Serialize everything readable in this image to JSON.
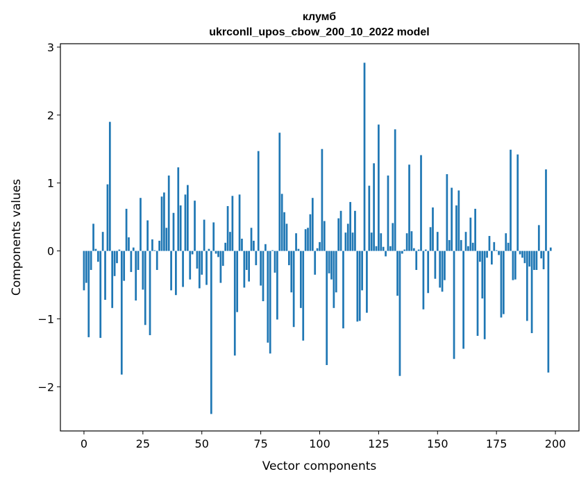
{
  "chart_data": {
    "type": "bar",
    "title": "клумб",
    "subtitle": "ukrconll_upos_cbow_200_10_2022 model",
    "xlabel": "Vector components",
    "ylabel": "Components values",
    "xlim": [
      -10,
      210
    ],
    "ylim": [
      -2.65,
      3.05
    ],
    "xticks": [
      0,
      25,
      50,
      75,
      100,
      125,
      150,
      175,
      200
    ],
    "yticks": [
      -2,
      -1,
      0,
      1,
      2,
      3
    ],
    "ytick_labels": [
      "−2",
      "−1",
      "0",
      "1",
      "2",
      "3"
    ],
    "bar_color": "#1f77b4",
    "grid": false,
    "values": [
      -0.58,
      -0.47,
      -1.27,
      -0.28,
      0.4,
      0.03,
      -0.16,
      -1.28,
      0.28,
      -0.72,
      0.98,
      1.9,
      -0.84,
      -0.37,
      -0.18,
      0.02,
      -1.82,
      -0.44,
      0.62,
      0.2,
      -0.31,
      0.05,
      -0.73,
      -0.28,
      0.78,
      -0.57,
      -1.09,
      0.45,
      -1.24,
      0.17,
      0.01,
      -0.28,
      0.15,
      0.8,
      0.86,
      0.34,
      1.11,
      -0.58,
      0.56,
      -0.65,
      1.23,
      0.67,
      -0.53,
      0.83,
      0.97,
      -0.42,
      -0.05,
      0.74,
      -0.26,
      -0.55,
      -0.35,
      0.46,
      -0.5,
      0.03,
      -2.4,
      0.42,
      -0.04,
      -0.09,
      -0.47,
      -0.22,
      0.12,
      0.66,
      0.28,
      0.81,
      -1.54,
      -0.9,
      0.83,
      0.18,
      -0.54,
      -0.28,
      -0.45,
      0.34,
      0.15,
      -0.21,
      1.47,
      -0.51,
      -0.74,
      0.1,
      -1.35,
      -1.51,
      0.01,
      -0.32,
      -1.01,
      1.74,
      0.84,
      0.57,
      0.4,
      -0.21,
      -0.61,
      -1.12,
      0.26,
      0.03,
      -0.84,
      -1.32,
      0.32,
      0.34,
      0.54,
      0.78,
      -0.35,
      0.04,
      0.13,
      1.5,
      0.44,
      -1.68,
      -0.33,
      -0.42,
      -0.84,
      -0.61,
      0.48,
      0.59,
      -1.14,
      0.27,
      0.4,
      0.72,
      0.27,
      0.59,
      -1.04,
      -1.03,
      -0.58,
      2.77,
      -0.91,
      0.96,
      0.27,
      1.29,
      0.07,
      1.86,
      0.26,
      0.06,
      -0.08,
      1.11,
      0.07,
      0.41,
      1.79,
      -0.66,
      -1.84,
      -0.04,
      0.02,
      0.26,
      1.27,
      0.29,
      0.04,
      -0.28,
      0.02,
      1.41,
      -0.86,
      0.02,
      -0.62,
      0.35,
      0.64,
      -0.41,
      0.28,
      -0.54,
      -0.6,
      -0.43,
      1.13,
      0.16,
      0.93,
      -1.59,
      0.67,
      0.89,
      0.16,
      -1.44,
      0.28,
      0.07,
      0.49,
      0.12,
      0.62,
      -1.25,
      -0.16,
      -0.7,
      -1.3,
      -0.1,
      0.22,
      -0.2,
      0.13,
      0.01,
      -0.06,
      -0.98,
      -0.93,
      0.26,
      0.12,
      1.49,
      -0.43,
      -0.42,
      1.42,
      -0.05,
      -0.1,
      -0.18,
      -1.03,
      -0.23,
      -1.21,
      -0.28,
      -0.28,
      0.38,
      -0.11,
      -0.27,
      1.2,
      -1.79,
      0.05
    ]
  }
}
